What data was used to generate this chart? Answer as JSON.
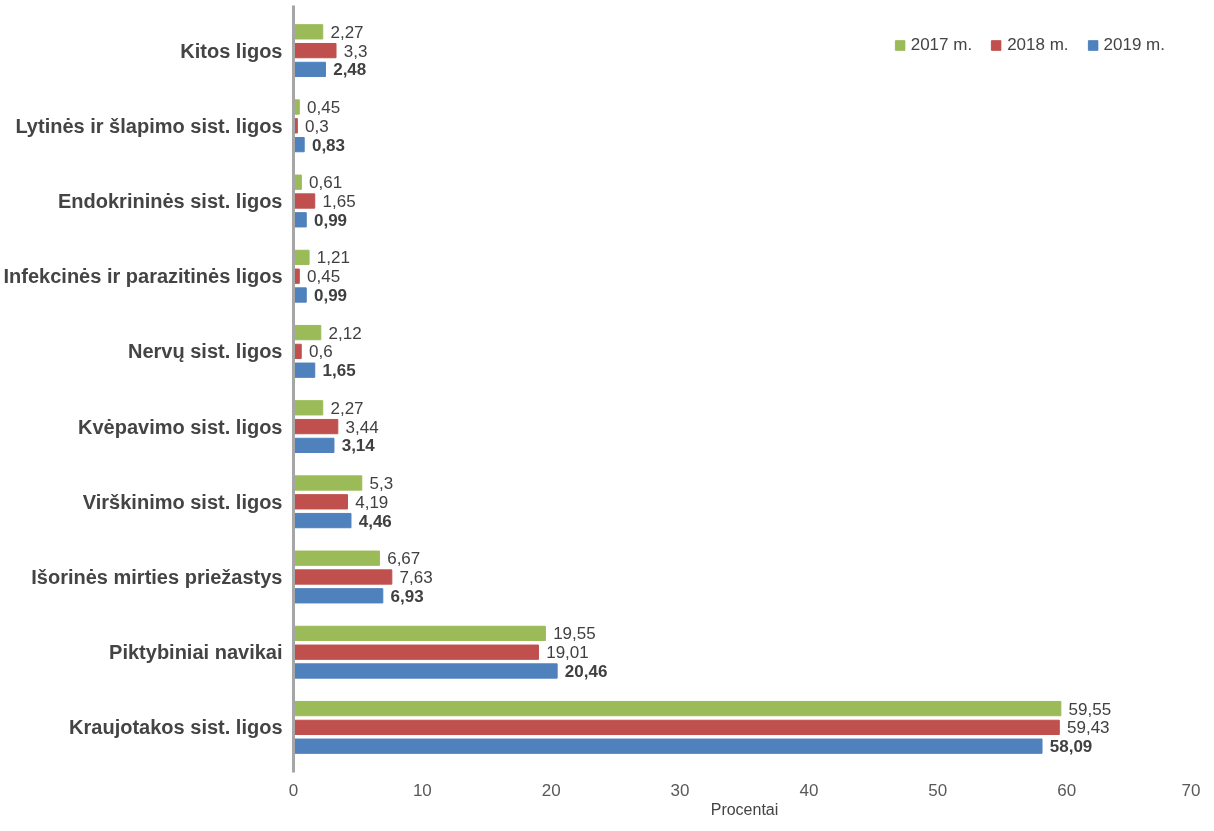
{
  "chart_data": {
    "type": "bar",
    "orientation": "horizontal",
    "xlabel": "Procentai",
    "categories": [
      "Kitos ligos",
      "Lytinės ir šlapimo sist. ligos",
      "Endokrininės sist. ligos",
      "Infekcinės ir parazitinės ligos",
      "Nervų sist. ligos",
      "Kvėpavimo sist. ligos",
      "Virškinimo sist. ligos",
      "Išorinės mirties priežastys",
      "Piktybiniai navikai",
      "Kraujotakos sist. ligos"
    ],
    "series": [
      {
        "name": "2017 m.",
        "color": "#9bbb59",
        "values": [
          2.27,
          0.45,
          0.61,
          1.21,
          2.12,
          2.27,
          5.3,
          6.67,
          19.55,
          59.55
        ],
        "value_labels": [
          "2,27",
          "0,45",
          "0,61",
          "1,21",
          "2,12",
          "2,27",
          "5,3",
          "6,67",
          "19,55",
          "59,55"
        ]
      },
      {
        "name": "2018 m.",
        "color": "#c0504d",
        "values": [
          3.3,
          0.3,
          1.65,
          0.45,
          0.6,
          3.44,
          4.19,
          7.63,
          19.01,
          59.43
        ],
        "value_labels": [
          "3,3",
          "0,3",
          "1,65",
          "0,45",
          "0,6",
          "3,44",
          "4,19",
          "7,63",
          "19,01",
          "59,43"
        ]
      },
      {
        "name": "2019 m.",
        "color": "#4f81bd",
        "values": [
          2.48,
          0.83,
          0.99,
          0.99,
          1.65,
          3.14,
          4.46,
          6.93,
          20.46,
          58.09
        ],
        "value_labels": [
          "2,48",
          "0,83",
          "0,99",
          "0,99",
          "1,65",
          "3,14",
          "4,46",
          "6,93",
          "20,46",
          "58,09"
        ]
      }
    ],
    "xlim": [
      0,
      70
    ],
    "xticks": [
      0,
      10,
      20,
      30,
      40,
      50,
      60,
      70
    ],
    "grid": false,
    "legend": "top right"
  }
}
